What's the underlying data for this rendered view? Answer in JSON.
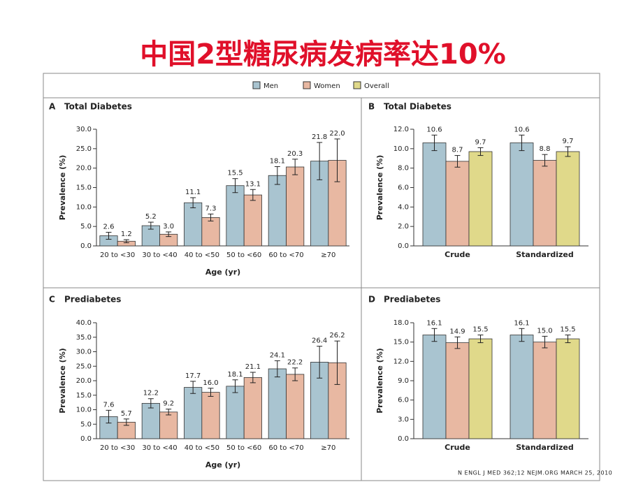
{
  "title": "中国2型糖尿病发病率达10%",
  "footer": "N ENGL J MED 362;12 NEJM.ORG MARCH 25, 2010",
  "chart_data": [
    {
      "type": "bar",
      "panel": "A",
      "title": "Total Diabetes",
      "categories": [
        "20 to <30",
        "30 to <40",
        "40 to <50",
        "50 to <60",
        "60 to <70",
        "≥70"
      ],
      "series": [
        {
          "name": "Men",
          "color": "#a9c4d0",
          "values": [
            2.6,
            5.2,
            11.1,
            15.5,
            18.1,
            21.8
          ],
          "value_labels": [
            "2.6",
            "5.2",
            "11.1",
            "15.5",
            "18.1",
            "21.8"
          ],
          "errors": [
            0.9,
            0.9,
            1.3,
            1.8,
            2.3,
            4.8
          ]
        },
        {
          "name": "Women",
          "color": "#e8b8a2",
          "values": [
            1.2,
            3.0,
            7.3,
            13.1,
            20.3,
            22.0
          ],
          "value_labels": [
            "1.2",
            "3.0",
            "7.3",
            "13.1",
            "20.3",
            "22.0"
          ],
          "errors": [
            0.4,
            0.6,
            0.9,
            1.4,
            2.0,
            5.5
          ]
        }
      ],
      "ylim": [
        0,
        30
      ],
      "yticks": [
        {
          "value": 0,
          "label": "0.0"
        },
        {
          "value": 5,
          "label": "5.0"
        },
        {
          "value": 10,
          "label": "10.0"
        },
        {
          "value": 15,
          "label": "15.0"
        },
        {
          "value": 20,
          "label": "20.0"
        },
        {
          "value": 25,
          "label": "25.0"
        },
        {
          "value": 30,
          "label": "30.0"
        }
      ],
      "xlabel": "Age (yr)",
      "ylabel": "Prevalence (%)"
    },
    {
      "type": "bar",
      "panel": "B",
      "title": "Total Diabetes",
      "categories": [
        "Crude",
        "Standardized"
      ],
      "series": [
        {
          "name": "Men",
          "color": "#a9c4d0",
          "values": [
            10.6,
            10.6
          ],
          "value_labels": [
            "10.6",
            "10.6"
          ],
          "errors": [
            0.8,
            0.8
          ]
        },
        {
          "name": "Women",
          "color": "#e8b8a2",
          "values": [
            8.7,
            8.8
          ],
          "value_labels": [
            "8.7",
            "8.8"
          ],
          "errors": [
            0.6,
            0.6
          ]
        },
        {
          "name": "Overall",
          "color": "#e0d98a",
          "values": [
            9.7,
            9.7
          ],
          "value_labels": [
            "9.7",
            "9.7"
          ],
          "errors": [
            0.4,
            0.5
          ]
        }
      ],
      "ylim": [
        0,
        12
      ],
      "yticks": [
        {
          "value": 0,
          "label": "0.0"
        },
        {
          "value": 2,
          "label": "2.0"
        },
        {
          "value": 4,
          "label": "4.0"
        },
        {
          "value": 6,
          "label": "6.0"
        },
        {
          "value": 8,
          "label": "8.0"
        },
        {
          "value": 10,
          "label": "10.0"
        },
        {
          "value": 12,
          "label": "12.0"
        }
      ],
      "ylabel": "Prevalence (%)"
    },
    {
      "type": "bar",
      "panel": "C",
      "title": "Prediabetes",
      "categories": [
        "20 to <30",
        "30 to <40",
        "40 to <50",
        "50 to <60",
        "60 to <70",
        "≥70"
      ],
      "series": [
        {
          "name": "Men",
          "color": "#a9c4d0",
          "values": [
            7.6,
            12.2,
            17.7,
            18.1,
            24.1,
            26.4
          ],
          "value_labels": [
            "7.6",
            "12.2",
            "17.7",
            "18.1",
            "24.1",
            "26.4"
          ],
          "errors": [
            2.2,
            1.6,
            2.1,
            2.2,
            2.8,
            5.5
          ]
        },
        {
          "name": "Women",
          "color": "#e8b8a2",
          "values": [
            5.7,
            9.2,
            16.0,
            21.1,
            22.2,
            26.2
          ],
          "value_labels": [
            "5.7",
            "9.2",
            "16.0",
            "21.1",
            "22.2",
            "26.2"
          ],
          "errors": [
            1.1,
            1.0,
            1.4,
            1.8,
            2.2,
            7.5
          ]
        }
      ],
      "ylim": [
        0,
        40
      ],
      "yticks": [
        {
          "value": 0,
          "label": "0.0"
        },
        {
          "value": 5,
          "label": "5.0"
        },
        {
          "value": 10,
          "label": "10.0"
        },
        {
          "value": 15,
          "label": "15.0"
        },
        {
          "value": 20,
          "label": "20.0"
        },
        {
          "value": 25,
          "label": "25.0"
        },
        {
          "value": 30,
          "label": "30.0"
        },
        {
          "value": 35,
          "label": "35.0"
        },
        {
          "value": 40,
          "label": "40.0"
        }
      ],
      "xlabel": "Age (yr)",
      "ylabel": "Prevalence (%)"
    },
    {
      "type": "bar",
      "panel": "D",
      "title": "Prediabetes",
      "categories": [
        "Crude",
        "Standardized"
      ],
      "series": [
        {
          "name": "Men",
          "color": "#a9c4d0",
          "values": [
            16.1,
            16.1
          ],
          "value_labels": [
            "16.1",
            "16.1"
          ],
          "errors": [
            1.0,
            1.0
          ]
        },
        {
          "name": "Women",
          "color": "#e8b8a2",
          "values": [
            14.9,
            15.0
          ],
          "value_labels": [
            "14.9",
            "15.0"
          ],
          "errors": [
            0.9,
            0.9
          ]
        },
        {
          "name": "Overall",
          "color": "#e0d98a",
          "values": [
            15.5,
            15.5
          ],
          "value_labels": [
            "15.5",
            "15.5"
          ],
          "errors": [
            0.6,
            0.6
          ]
        }
      ],
      "ylim": [
        0,
        18
      ],
      "yticks": [
        {
          "value": 0,
          "label": "0.0"
        },
        {
          "value": 3,
          "label": "3.0"
        },
        {
          "value": 6,
          "label": "6.0"
        },
        {
          "value": 9,
          "label": "9.0"
        },
        {
          "value": 12,
          "label": "12.0"
        },
        {
          "value": 15,
          "label": "15.0"
        },
        {
          "value": 18,
          "label": "18.0"
        }
      ],
      "ylabel": "Prevalence (%)"
    }
  ]
}
